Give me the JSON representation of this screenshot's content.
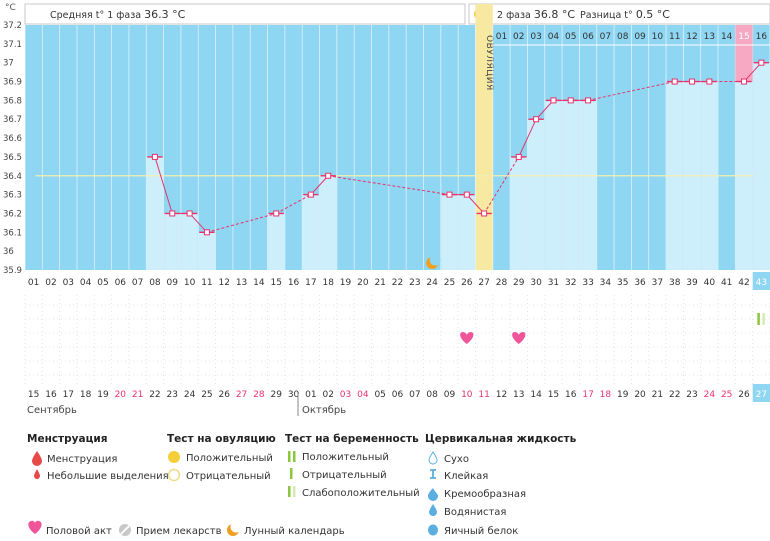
{
  "unit": "°C",
  "header": {
    "phase1_label": "Средняя t° 1 фаза",
    "phase1_value": "36.3 °C",
    "phase2_label": "2 фаза",
    "phase2_value": "36.8 °C",
    "diff_label": "Разница t°",
    "diff_value": "0.5 °C"
  },
  "ovulation_label": "ОВУЛЯЦИЯ",
  "months": [
    "Сентябрь",
    "Октябрь"
  ],
  "chart_data": {
    "type": "line",
    "ylim": [
      35.9,
      37.2
    ],
    "y_ticks": [
      "35.9",
      "36",
      "36.1",
      "36.2",
      "36.3",
      "36.4",
      "36.5",
      "36.6",
      "36.7",
      "36.8",
      "36.9",
      "37",
      "37.1",
      "37.2"
    ],
    "ovulation_index": 26,
    "phase1_mean": 36.3,
    "phase2_mean": 36.8,
    "period_end_index": 41,
    "cycle_days": [
      "01",
      "02",
      "03",
      "04",
      "05",
      "06",
      "07",
      "08",
      "09",
      "10",
      "11",
      "12",
      "13",
      "14",
      "15",
      "16",
      "17",
      "18",
      "19",
      "20",
      "21",
      "22",
      "23",
      "24",
      "25",
      "26",
      "27",
      "28",
      "29",
      "30",
      "31",
      "32",
      "33",
      "34",
      "35",
      "36",
      "37",
      "38",
      "39",
      "40",
      "41",
      "42",
      "43"
    ],
    "top_numbers": [
      "01",
      "02",
      "03",
      "04",
      "05",
      "06",
      "07",
      "08",
      "09",
      "10",
      "11",
      "12",
      "13",
      "14",
      "15",
      "16"
    ],
    "top_numbers_highlight_index": 14,
    "last_cycle_day_highlight": "43",
    "dates": [
      "15",
      "16",
      "17",
      "18",
      "19",
      "20",
      "21",
      "22",
      "23",
      "24",
      "25",
      "26",
      "27",
      "28",
      "29",
      "30",
      "01",
      "02",
      "03",
      "04",
      "05",
      "06",
      "07",
      "08",
      "09",
      "10",
      "11",
      "12",
      "13",
      "14",
      "15",
      "16",
      "17",
      "18",
      "19",
      "20",
      "21",
      "22",
      "23",
      "24",
      "25",
      "26",
      "27"
    ],
    "weekend_dates": [
      5,
      6,
      12,
      13,
      18,
      19,
      25,
      26,
      32,
      33,
      39,
      40
    ],
    "last_date_highlight": "27",
    "temperatures": [
      null,
      null,
      null,
      null,
      null,
      null,
      null,
      36.5,
      36.2,
      36.2,
      36.1,
      null,
      null,
      null,
      36.2,
      null,
      36.3,
      36.4,
      null,
      null,
      null,
      null,
      null,
      null,
      36.3,
      36.3,
      36.2,
      null,
      36.5,
      36.7,
      36.8,
      36.8,
      36.8,
      null,
      null,
      null,
      null,
      36.9,
      36.9,
      36.9,
      null,
      36.9,
      37.0
    ],
    "intercourse_days": [
      25,
      28
    ],
    "moon_day_index": 23,
    "test_marker_index": 42
  },
  "legend": {
    "menstruation": {
      "title": "Менструация",
      "items": [
        "Менструация",
        "Небольшие выделения"
      ]
    },
    "ovulation_test": {
      "title": "Тест на овуляцию",
      "items": [
        "Положительный",
        "Отрицательный"
      ]
    },
    "pregnancy_test": {
      "title": "Тест на беременность",
      "items": [
        "Положительный",
        "Отрицательный",
        "Слабоположительный"
      ]
    },
    "cervical": {
      "title": "Цервикальная жидкость",
      "items": [
        "Сухо",
        "Клейкая",
        "Кремообразная",
        "Водянистая",
        "Яичный белок"
      ]
    },
    "bottom": [
      "Половой акт",
      "Прием лекарств",
      "Лунный календарь"
    ]
  },
  "colors": {
    "plot_bg": "#8fd6f2",
    "bar": "#cdeefb",
    "ovulation": "#f7e8a2",
    "ovulation_dot": "#f4cf3b",
    "pink": "#f7a9c4",
    "line": "#e8336d",
    "grid_dot": "#e4e4e4",
    "weekend": "#e8336d"
  }
}
